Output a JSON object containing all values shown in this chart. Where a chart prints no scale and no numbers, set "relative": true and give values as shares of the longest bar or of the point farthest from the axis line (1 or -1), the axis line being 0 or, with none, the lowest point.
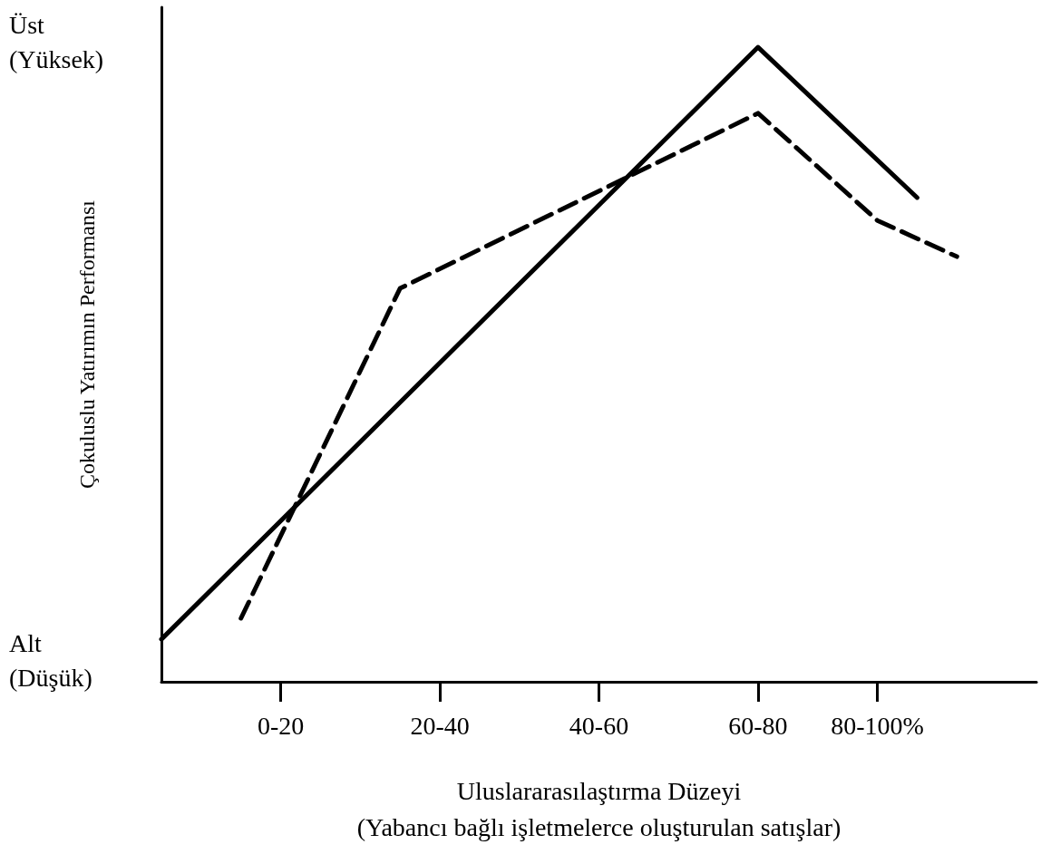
{
  "chart_data": {
    "type": "line",
    "relative": true,
    "ylabel": "Çokuluslu Yatırımın Performansı",
    "xlabel": "Uluslararasılaştırma Düzeyi\n(Yabancı bağlı işletmelerce oluşturulan satışlar)",
    "annotations": [
      "Üst\n(Yüksek)",
      "Alt\n(Düşük)"
    ],
    "categories": [
      null,
      null,
      null,
      "0-20",
      null,
      null,
      null,
      "20-40",
      null,
      null,
      null,
      "40-60",
      null,
      null,
      null,
      "60-80",
      null,
      null,
      "80-100%",
      null,
      null,
      null,
      null
    ],
    "marker": "none",
    "series": [
      {
        "color": "#000000",
        "line_style": "solid",
        "values": [
          0.067,
          null,
          null,
          null,
          null,
          null,
          null,
          null,
          null,
          null,
          null,
          null,
          null,
          null,
          null,
          1,
          null,
          null,
          null,
          0.763,
          null,
          null,
          null
        ]
      },
      {
        "color": "#000000",
        "line_style": "dashed",
        "values": [
          null,
          null,
          0.1,
          null,
          null,
          null,
          0.62,
          null,
          null,
          null,
          null,
          null,
          null,
          null,
          null,
          0.896,
          null,
          null,
          0.727,
          null,
          0.67,
          null,
          null
        ]
      }
    ]
  }
}
